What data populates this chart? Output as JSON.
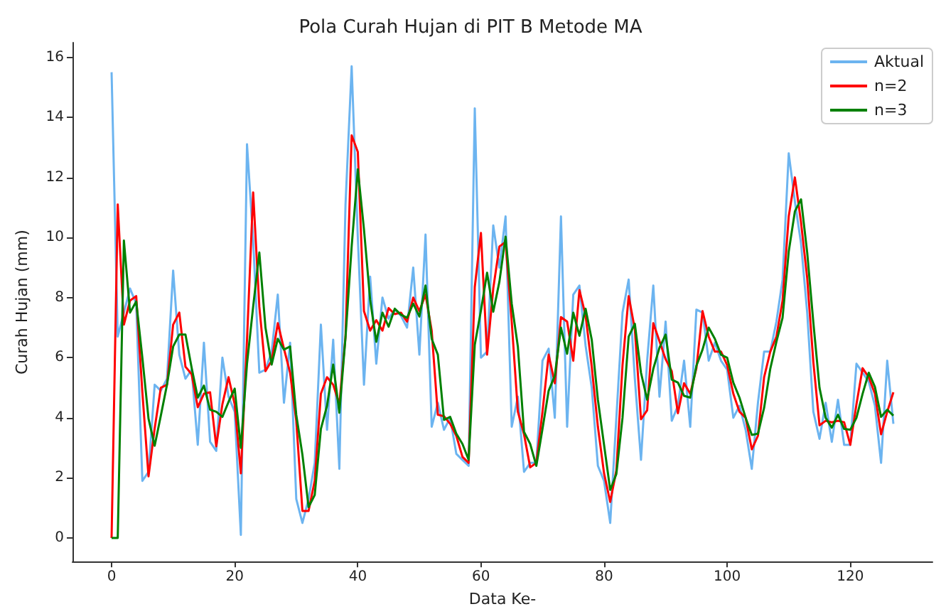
{
  "chart_data": {
    "type": "line",
    "title": "Pola Curah Hujan di PIT B Metode MA",
    "xlabel": "Data Ke-",
    "ylabel": "Curah Hujan (mm)",
    "x": [
      0,
      1,
      2,
      3,
      4,
      5,
      6,
      7,
      8,
      9,
      10,
      11,
      12,
      13,
      14,
      15,
      16,
      17,
      18,
      19,
      20,
      21,
      22,
      23,
      24,
      25,
      26,
      27,
      28,
      29,
      30,
      31,
      32,
      33,
      34,
      35,
      36,
      37,
      38,
      39,
      40,
      41,
      42,
      43,
      44,
      45,
      46,
      47,
      48,
      49,
      50,
      51,
      52,
      53,
      54,
      55,
      56,
      57,
      58,
      59,
      60,
      61,
      62,
      63,
      64,
      65,
      66,
      67,
      68,
      69,
      70,
      71,
      72,
      73,
      74,
      75,
      76,
      77,
      78,
      79,
      80,
      81,
      82,
      83,
      84,
      85,
      86,
      87,
      88,
      89,
      90,
      91,
      92,
      93,
      94,
      95,
      96,
      97,
      98,
      99,
      100,
      101,
      102,
      103,
      104,
      105,
      106,
      107,
      108,
      109,
      110,
      111,
      112,
      113,
      114,
      115,
      116,
      117,
      118,
      119,
      120,
      121,
      122,
      123,
      124,
      125,
      126,
      127
    ],
    "series": [
      {
        "name": "Aktual",
        "color": "#6cb4f0",
        "values": [
          15.5,
          6.7,
          7.5,
          8.3,
          7.8,
          1.9,
          2.2,
          5.1,
          4.9,
          5.3,
          8.9,
          6.1,
          5.3,
          5.6,
          3.1,
          6.5,
          3.2,
          2.9,
          6.0,
          4.7,
          4.2,
          0.1,
          13.1,
          9.9,
          5.5,
          5.6,
          6.2,
          8.1,
          4.5,
          6.5,
          1.3,
          0.5,
          1.3,
          2.5,
          7.1,
          3.6,
          6.6,
          2.3,
          11.1,
          15.7,
          10.0,
          5.1,
          8.7,
          5.8,
          8.0,
          7.3,
          7.6,
          7.4,
          7.0,
          9.0,
          6.1,
          10.1,
          3.7,
          4.5,
          3.6,
          4.0,
          2.8,
          2.6,
          2.4,
          14.3,
          6.0,
          6.2,
          10.4,
          9.0,
          10.7,
          3.7,
          4.7,
          2.2,
          2.5,
          2.5,
          5.9,
          6.3,
          4.0,
          10.7,
          3.7,
          8.1,
          8.4,
          6.4,
          5.0,
          2.4,
          1.9,
          0.5,
          4.0,
          7.5,
          8.6,
          5.3,
          2.6,
          5.9,
          8.4,
          4.7,
          7.2,
          3.9,
          4.4,
          5.9,
          3.7,
          7.6,
          7.5,
          5.9,
          6.5,
          5.9,
          5.6,
          4.0,
          4.4,
          3.6,
          2.3,
          4.5,
          6.2,
          6.2,
          7.2,
          8.6,
          12.8,
          11.2,
          9.8,
          7.5,
          4.2,
          3.3,
          4.5,
          3.2,
          4.6,
          3.1,
          3.1,
          5.8,
          5.5,
          5.2,
          4.4,
          2.5,
          5.9,
          3.8
        ]
      },
      {
        "name": "n=2",
        "color": "#ff0000",
        "values": [
          0,
          11.1,
          7.1,
          7.9,
          8.05,
          4.85,
          2.05,
          3.65,
          5.0,
          5.1,
          7.1,
          7.5,
          5.7,
          5.45,
          4.35,
          4.8,
          4.85,
          3.05,
          4.45,
          5.35,
          4.45,
          2.15,
          6.6,
          11.5,
          7.7,
          5.55,
          5.9,
          7.15,
          6.3,
          5.5,
          3.9,
          0.9,
          0.9,
          1.9,
          4.8,
          5.35,
          5.1,
          4.45,
          6.7,
          13.4,
          12.85,
          7.55,
          6.9,
          7.25,
          6.9,
          7.65,
          7.45,
          7.5,
          7.2,
          8.0,
          7.55,
          8.1,
          6.9,
          4.1,
          4.05,
          3.8,
          3.4,
          2.7,
          2.5,
          8.35,
          10.15,
          6.1,
          8.3,
          9.7,
          9.85,
          7.2,
          4.2,
          3.45,
          2.35,
          2.5,
          4.2,
          6.1,
          5.15,
          7.35,
          7.2,
          5.9,
          8.25,
          7.4,
          5.7,
          3.7,
          2.15,
          1.2,
          2.25,
          5.75,
          8.05,
          6.95,
          3.95,
          4.25,
          7.15,
          6.55,
          5.95,
          5.55,
          4.15,
          5.15,
          4.8,
          5.65,
          7.55,
          6.7,
          6.2,
          6.2,
          5.75,
          4.8,
          4.2,
          4.0,
          2.95,
          3.4,
          5.35,
          6.2,
          6.7,
          7.9,
          10.7,
          12.0,
          10.5,
          8.65,
          5.85,
          3.75,
          3.9,
          3.85,
          3.9,
          3.85,
          3.1,
          4.45,
          5.65,
          5.35,
          4.8,
          3.45,
          4.2,
          4.85
        ]
      },
      {
        "name": "n=3",
        "color": "#008000",
        "values": [
          0,
          0,
          9.9,
          7.5,
          7.87,
          6.0,
          3.97,
          3.07,
          4.07,
          5.1,
          6.37,
          6.77,
          6.77,
          5.67,
          4.67,
          5.07,
          4.27,
          4.2,
          4.03,
          4.53,
          4.97,
          3.0,
          5.8,
          7.7,
          9.5,
          7.0,
          5.77,
          6.63,
          6.27,
          6.37,
          4.1,
          2.77,
          1.03,
          1.43,
          3.63,
          4.4,
          5.77,
          4.17,
          6.67,
          9.7,
          12.27,
          10.27,
          7.93,
          6.53,
          7.5,
          7.03,
          7.63,
          7.43,
          7.33,
          7.8,
          7.37,
          8.4,
          6.63,
          6.1,
          3.93,
          4.03,
          3.47,
          3.13,
          2.6,
          6.43,
          7.57,
          8.83,
          7.53,
          8.53,
          10.03,
          7.8,
          6.37,
          3.53,
          3.13,
          2.4,
          3.63,
          4.9,
          5.4,
          7.0,
          6.13,
          7.5,
          6.73,
          7.63,
          6.6,
          4.6,
          3.1,
          1.6,
          2.13,
          4.0,
          6.7,
          7.13,
          5.5,
          4.6,
          5.63,
          6.33,
          6.77,
          5.27,
          5.17,
          4.73,
          4.67,
          5.73,
          6.27,
          7.0,
          6.63,
          6.1,
          6.0,
          5.17,
          4.67,
          4.0,
          3.43,
          3.47,
          4.33,
          5.63,
          6.53,
          7.33,
          9.53,
          10.87,
          11.27,
          9.5,
          7.17,
          5.0,
          4.0,
          3.67,
          4.1,
          3.63,
          3.6,
          4.0,
          4.8,
          5.5,
          5.03,
          4.03,
          4.27,
          4.07
        ]
      }
    ],
    "xlim": [
      -6.35,
      133.35
    ],
    "xticks": [
      0,
      20,
      40,
      60,
      80,
      100,
      120
    ],
    "ylim": [
      -0.785,
      16.485
    ],
    "yticks": [
      0,
      2,
      4,
      6,
      8,
      10,
      12,
      14,
      16
    ],
    "legend": "top right",
    "grid": false
  }
}
